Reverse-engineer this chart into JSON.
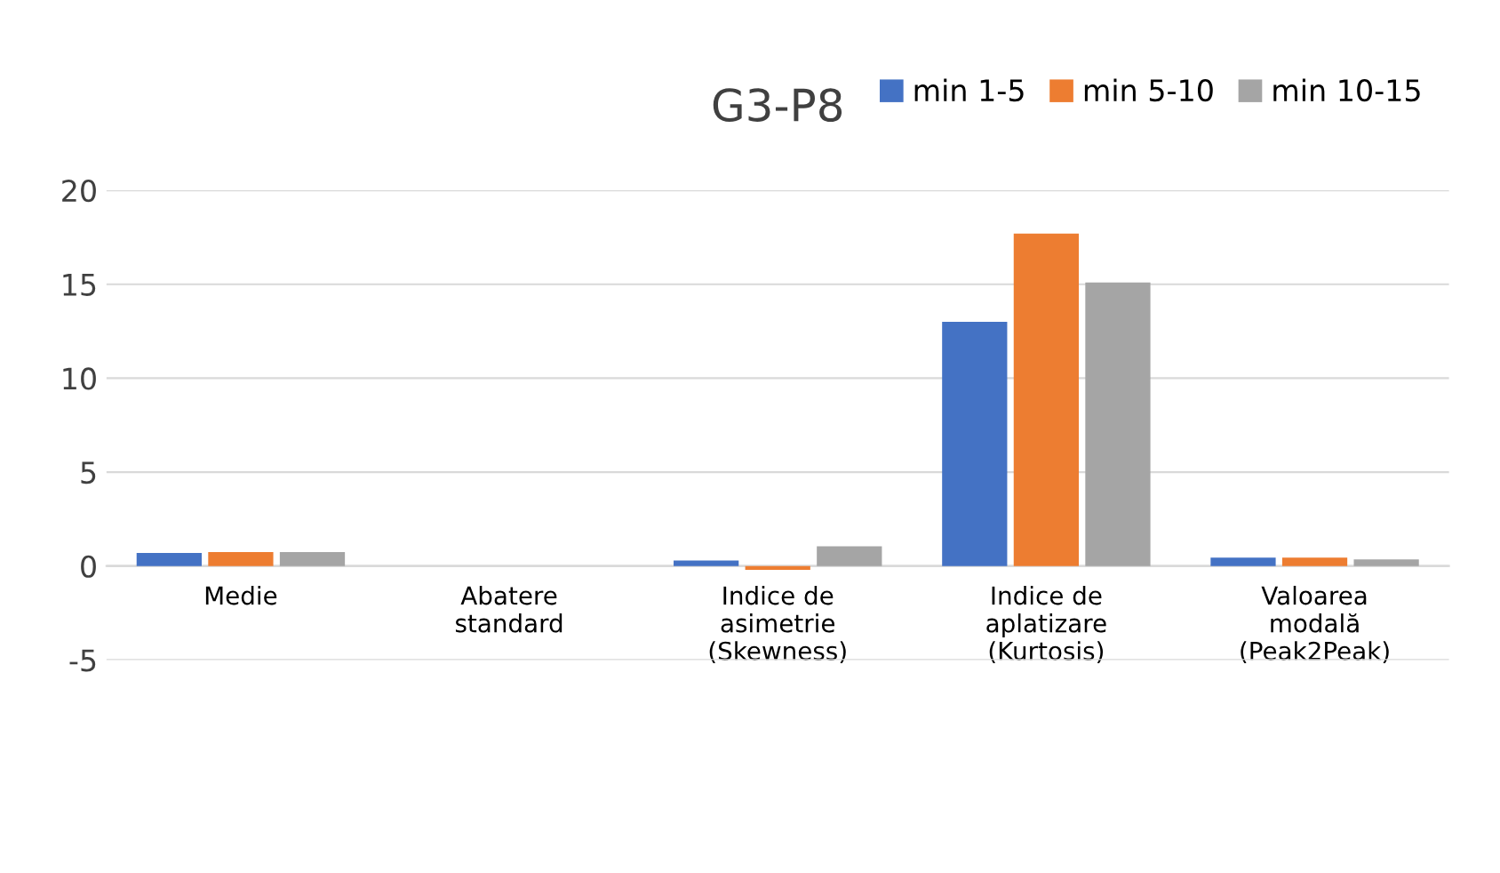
{
  "chart_data": {
    "type": "bar",
    "title": "G3-P8",
    "categories": [
      "Medie",
      "Abatere\nstandard",
      "Indice de\nasimetrie\n(Skewness)",
      "Indice de\naplatizare\n(Kurtosis)",
      "Valoarea\nmodală\n(Peak2Peak)"
    ],
    "series": [
      {
        "name": "min 1-5",
        "color": "#4472c4",
        "values": [
          0.7,
          0,
          0.3,
          13.0,
          0.45
        ]
      },
      {
        "name": "min 5-10",
        "color": "#ed7d31",
        "values": [
          0.75,
          0,
          -0.2,
          17.7,
          0.45
        ]
      },
      {
        "name": "min 10-15",
        "color": "#a5a5a5",
        "values": [
          0.75,
          0,
          1.05,
          15.1,
          0.35
        ]
      }
    ],
    "ylim": [
      -5,
      20
    ],
    "yticks": [
      -5,
      0,
      5,
      10,
      15,
      20
    ],
    "grid": "y",
    "legend": "top right"
  }
}
